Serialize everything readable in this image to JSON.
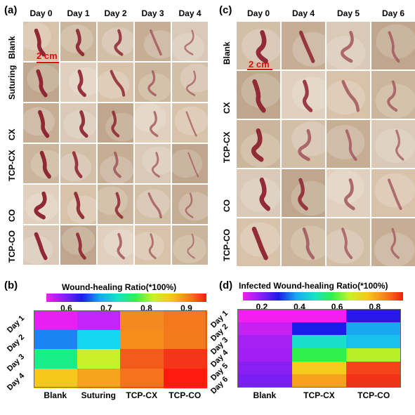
{
  "panel_a": {
    "letter": "(a)",
    "days": [
      "Day 0",
      "Day 1",
      "Day 2",
      "Day 3",
      "Day 4"
    ],
    "groups": [
      "Blank",
      "Suturing",
      "CX",
      "TCP-CX",
      "CO",
      "TCP-CO"
    ],
    "scale_label": "2 cm"
  },
  "panel_c": {
    "letter": "(c)",
    "days": [
      "Day 0",
      "Day 4",
      "Day 5",
      "Day 6"
    ],
    "groups": [
      "Blank",
      "CX",
      "TCP-CX",
      "CO",
      "TCP-CO"
    ],
    "scale_label": "2 cm"
  },
  "chart_data": [
    {
      "panel": "(b)",
      "type": "heatmap",
      "title": "Wound-healing Ratio(*100%)",
      "colorbar_ticks": [
        "0.6",
        "0.7",
        "0.8",
        "0.9"
      ],
      "colorbar_range": [
        0.55,
        0.95
      ],
      "categories": [
        "Blank",
        "Suturing",
        "TCP-CX",
        "TCP-CO"
      ],
      "rows": [
        "Day 1",
        "Day 2",
        "Day 3",
        "Day 4"
      ],
      "colors": [
        [
          "#e81ff2",
          "#c424f7",
          "#f48a1f",
          "#f6781d"
        ],
        [
          "#1c83f3",
          "#14d7ef",
          "#f68c1c",
          "#f47a1c"
        ],
        [
          "#18ef88",
          "#c8f12a",
          "#f45a1b",
          "#f5351a"
        ],
        [
          "#f7c81c",
          "#f6a41d",
          "#f6721c",
          "#ff1a10"
        ]
      ]
    },
    {
      "panel": "(d)",
      "type": "heatmap",
      "title": "Infected Wound-healing Ratio(*100%)",
      "colorbar_ticks": [
        "0.2",
        "0.4",
        "0.6",
        "0.8"
      ],
      "colorbar_range": [
        0.1,
        0.95
      ],
      "categories": [
        "Blank",
        "TCP-CX",
        "TCP-CO"
      ],
      "rows": [
        "Day 1",
        "Day 2",
        "Day 3",
        "Day 4",
        "Day 5",
        "Day 6"
      ],
      "colors": [
        [
          "#f21ff1",
          "#f21ff1",
          "#2a18e6"
        ],
        [
          "#c81ff2",
          "#1a1ce8",
          "#18a8f0"
        ],
        [
          "#a61ff3",
          "#18e0c8",
          "#18c0ec"
        ],
        [
          "#a11ff3",
          "#30f050",
          "#b8f028"
        ],
        [
          "#8a1ff4",
          "#f5cb1c",
          "#f6441a"
        ],
        [
          "#7a1ff4",
          "#f6a01c",
          "#f23216"
        ]
      ]
    }
  ]
}
